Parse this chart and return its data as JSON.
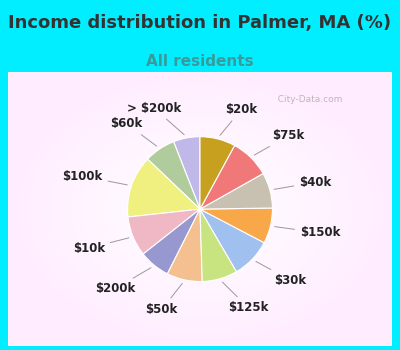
{
  "title": "Income distribution in Palmer, MA (%)",
  "subtitle": "All residents",
  "title_color": "#333333",
  "subtitle_color": "#3a9a9a",
  "background_cyan": "#00EEFF",
  "background_chart_center": "#f0faf5",
  "labels": [
    "> $200k",
    "$60k",
    "$100k",
    "$10k",
    "$200k",
    "$50k",
    "$125k",
    "$30k",
    "$150k",
    "$40k",
    "$75k",
    "$20k"
  ],
  "values": [
    6,
    7,
    14,
    9,
    7,
    8,
    8,
    9,
    8,
    8,
    9,
    8
  ],
  "colors": [
    "#c0b8e8",
    "#b0cc9c",
    "#f0f080",
    "#f0b8c4",
    "#9898d0",
    "#f4c090",
    "#c8e480",
    "#a0c0f0",
    "#f8a848",
    "#c8c0b0",
    "#f07878",
    "#c8a020"
  ],
  "start_angle": 90,
  "title_fontsize": 13,
  "subtitle_fontsize": 11,
  "label_fontsize": 8.5,
  "label_color": "#222222",
  "line_color": "#999999"
}
